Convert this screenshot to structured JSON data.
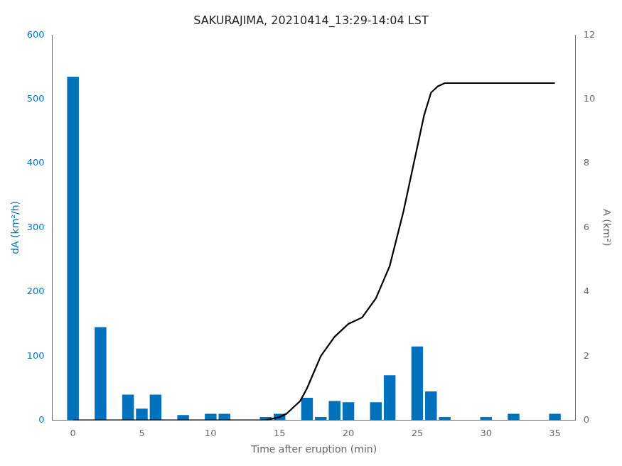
{
  "chart_data": {
    "type": "bar",
    "title": "SAKURAJIMA, 20210414_13:29-14:04 LST",
    "xlabel": "Time after eruption (min)",
    "ylabel": "dA (km²/h)",
    "y2label": "A (km²)",
    "xlim": [
      -1.5,
      36.5
    ],
    "xticks": [
      0,
      5,
      10,
      15,
      20,
      25,
      30,
      35
    ],
    "ylim": [
      0,
      600
    ],
    "yticks": [
      0,
      100,
      200,
      300,
      400,
      500,
      600
    ],
    "y2lim": [
      0,
      12
    ],
    "y2ticks": [
      0,
      2,
      4,
      6,
      8,
      10,
      12
    ],
    "grid": false,
    "series": [
      {
        "type": "bar",
        "color": "#0072BD",
        "x": [
          0,
          2,
          4,
          5,
          6,
          8,
          10,
          11,
          14,
          15,
          17,
          18,
          19,
          20,
          22,
          23,
          25,
          26,
          27,
          28,
          30,
          32,
          33,
          35
        ],
        "values": [
          535,
          145,
          40,
          18,
          40,
          8,
          10,
          10,
          5,
          10,
          35,
          5,
          30,
          28,
          28,
          70,
          115,
          45,
          5,
          0,
          5,
          10,
          0,
          10
        ]
      },
      {
        "type": "line",
        "axis": "y2",
        "color": "#000000",
        "x": [
          0,
          1,
          2,
          3,
          4,
          5,
          6,
          7,
          8,
          9,
          10,
          11,
          12,
          13,
          14,
          14.5,
          15,
          15.5,
          16,
          16.5,
          17,
          17.5,
          18,
          19,
          20,
          21,
          22,
          23,
          24,
          24.5,
          25,
          25.5,
          26,
          26.5,
          27,
          27.5,
          28,
          29,
          30,
          31,
          32,
          33,
          34,
          35
        ],
        "values": [
          0,
          0,
          0,
          0,
          0,
          0,
          0,
          0,
          0,
          0,
          0,
          0,
          0,
          0,
          0,
          0.05,
          0.1,
          0.2,
          0.4,
          0.6,
          1.0,
          1.5,
          2.0,
          2.6,
          3.0,
          3.2,
          3.8,
          4.8,
          6.5,
          7.5,
          8.5,
          9.5,
          10.2,
          10.4,
          10.5,
          10.5,
          10.5,
          10.5,
          10.5,
          10.5,
          10.5,
          10.5,
          10.5,
          10.5
        ]
      }
    ]
  }
}
